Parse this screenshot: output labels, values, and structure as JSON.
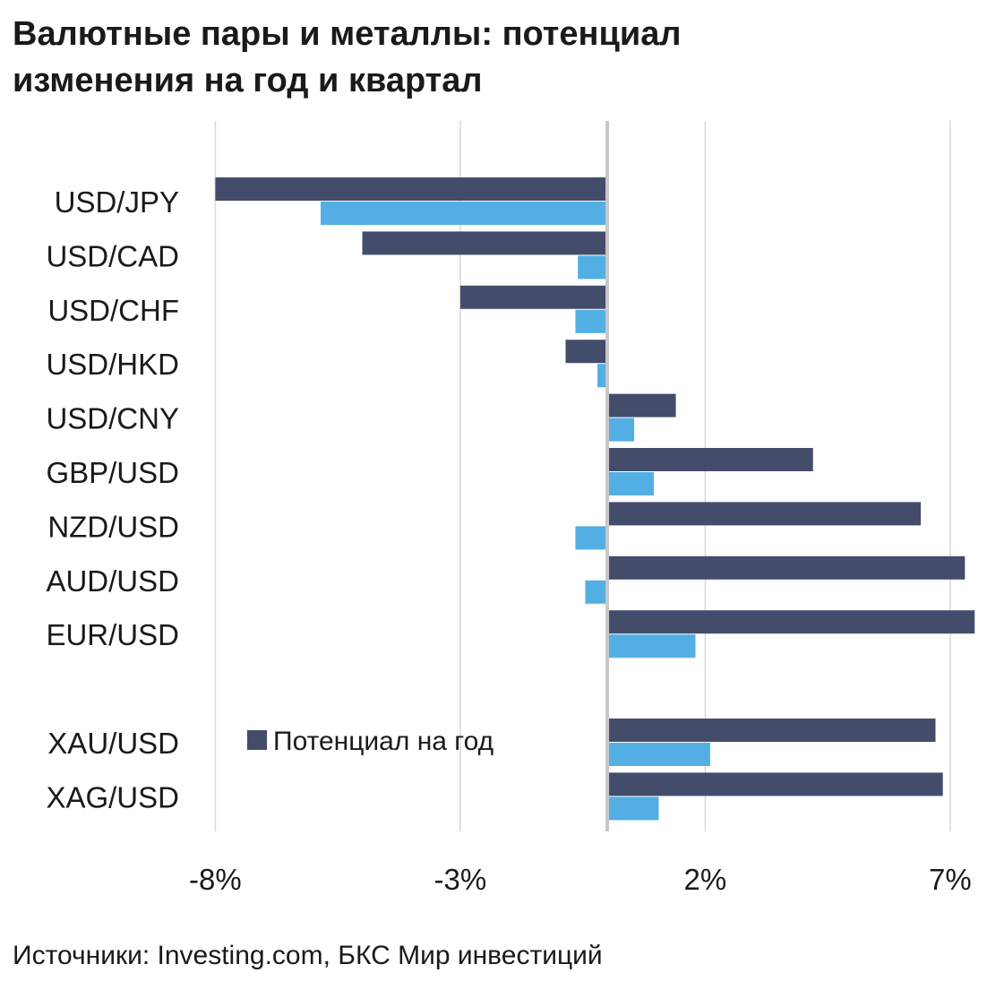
{
  "title_lines": [
    "Валютные пары и металлы: потенциал",
    "изменения на год и квартал"
  ],
  "source": "Источники: Investing.com, БКС Мир инвестиций",
  "chart_data": {
    "type": "bar",
    "orientation": "horizontal",
    "title": "Валютные пары и металлы: потенциал изменения на год и квартал",
    "categories": [
      "USD/JPY",
      "USD/CAD",
      "USD/CHF",
      "USD/HKD",
      "USD/CNY",
      "GBP/USD",
      "NZD/USD",
      "AUD/USD",
      "EUR/USD",
      "",
      "XAU/USD",
      "XAG/USD"
    ],
    "series": [
      {
        "name": "Потенциал на год",
        "color": "#434d6b",
        "values": [
          -8.0,
          -5.0,
          -3.0,
          -0.85,
          1.4,
          4.2,
          6.4,
          7.3,
          7.5,
          null,
          6.7,
          6.85
        ]
      },
      {
        "name": "",
        "color": "#53aee3",
        "values": [
          -5.85,
          -0.6,
          -0.65,
          -0.2,
          0.55,
          0.95,
          -0.65,
          -0.45,
          1.8,
          null,
          2.1,
          1.05
        ]
      }
    ],
    "xlim": [
      -8,
      7.5
    ],
    "xticks": [
      -8,
      -3,
      2,
      7
    ],
    "xtick_labels": [
      "-8%",
      "-3%",
      "2%",
      "7%"
    ],
    "grid": true,
    "legend": {
      "position": "lower-center-left",
      "entries": [
        "Потенциал на год"
      ]
    }
  }
}
